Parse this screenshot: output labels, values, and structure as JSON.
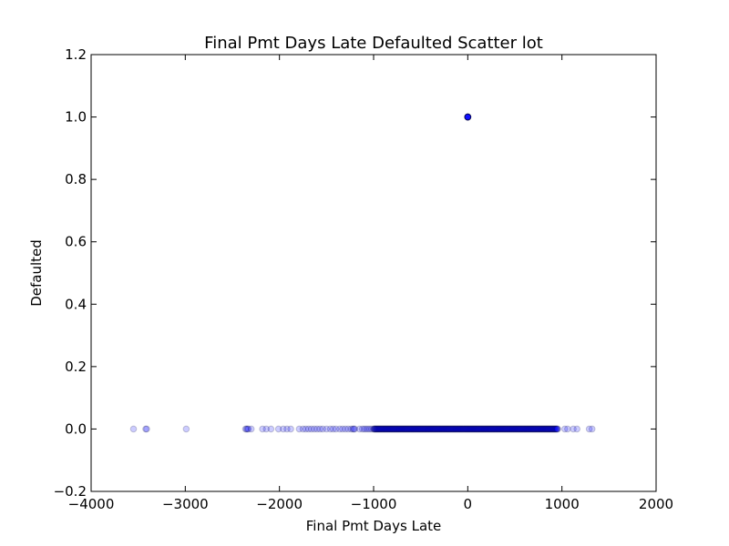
{
  "chart_data": {
    "type": "scatter",
    "title": "Final Pmt Days Late Defaulted Scatter lot",
    "xlabel": "Final Pmt Days Late",
    "ylabel": "Defaulted",
    "xlim": [
      -4000,
      2000
    ],
    "ylim": [
      -0.2,
      1.2
    ],
    "xticks": [
      -4000,
      -3000,
      -2000,
      -1000,
      0,
      1000,
      2000
    ],
    "xtick_labels": [
      "−4000",
      "−3000",
      "−2000",
      "−1000",
      "0",
      "1000",
      "2000"
    ],
    "yticks": [
      -0.2,
      0.0,
      0.2,
      0.4,
      0.6,
      0.8,
      1.0,
      1.2
    ],
    "ytick_labels": [
      "−0.2",
      "0.0",
      "0.2",
      "0.4",
      "0.6",
      "0.8",
      "1.0",
      "1.2"
    ],
    "grid": false,
    "marker_color": "#0000ff",
    "marker_alpha": 0.2,
    "points": [
      {
        "x": -3550,
        "y": 0
      },
      {
        "x": -3420,
        "y": 0
      },
      {
        "x": -3410,
        "y": 0
      },
      {
        "x": -2990,
        "y": 0
      },
      {
        "x": -2360,
        "y": 0
      },
      {
        "x": -2350,
        "y": 0
      },
      {
        "x": -2340,
        "y": 0
      },
      {
        "x": -2330,
        "y": 0
      },
      {
        "x": -2300,
        "y": 0
      },
      {
        "x": -2180,
        "y": 0
      },
      {
        "x": -2140,
        "y": 0
      },
      {
        "x": -2090,
        "y": 0
      },
      {
        "x": -2010,
        "y": 0
      },
      {
        "x": -1960,
        "y": 0
      },
      {
        "x": -1920,
        "y": 0
      },
      {
        "x": -1880,
        "y": 0
      },
      {
        "x": -1790,
        "y": 0
      },
      {
        "x": -1750,
        "y": 0
      },
      {
        "x": -1720,
        "y": 0
      },
      {
        "x": -1690,
        "y": 0
      },
      {
        "x": -1660,
        "y": 0
      },
      {
        "x": -1630,
        "y": 0
      },
      {
        "x": -1600,
        "y": 0
      },
      {
        "x": -1570,
        "y": 0
      },
      {
        "x": -1540,
        "y": 0
      },
      {
        "x": -1500,
        "y": 0
      },
      {
        "x": -1460,
        "y": 0
      },
      {
        "x": -1430,
        "y": 0
      },
      {
        "x": -1400,
        "y": 0
      },
      {
        "x": -1360,
        "y": 0
      },
      {
        "x": -1330,
        "y": 0
      },
      {
        "x": -1300,
        "y": 0
      },
      {
        "x": -1270,
        "y": 0
      },
      {
        "x": -1240,
        "y": 0
      },
      {
        "x": -1220,
        "y": 0
      },
      {
        "x": -1210,
        "y": 0
      },
      {
        "x": -1200,
        "y": 0
      },
      {
        "x": -1150,
        "y": 0
      },
      {
        "x": -1120,
        "y": 0
      },
      {
        "x": -1100,
        "y": 0
      },
      {
        "x": -1080,
        "y": 0
      },
      {
        "x": -1060,
        "y": 0
      },
      {
        "x": -1040,
        "y": 0
      },
      {
        "x": -1020,
        "y": 0
      },
      {
        "x": 1030,
        "y": 0
      },
      {
        "x": 1060,
        "y": 0
      },
      {
        "x": 1120,
        "y": 0
      },
      {
        "x": 1160,
        "y": 0
      },
      {
        "x": 1290,
        "y": 0
      },
      {
        "x": 1320,
        "y": 0
      },
      {
        "x": 0,
        "y": 1
      },
      {
        "x": 0,
        "y": 1
      },
      {
        "x": 0,
        "y": 1
      },
      {
        "x": 0,
        "y": 1
      },
      {
        "x": 0,
        "y": 1
      },
      {
        "x": 0,
        "y": 1
      },
      {
        "x": 0,
        "y": 1
      },
      {
        "x": 0,
        "y": 1
      },
      {
        "x": 0,
        "y": 1
      },
      {
        "x": 0,
        "y": 1
      },
      {
        "x": 0,
        "y": 1
      },
      {
        "x": 0,
        "y": 1
      }
    ],
    "dense_range": {
      "x_from": -1000,
      "x_to": 950,
      "y": 0
    }
  }
}
